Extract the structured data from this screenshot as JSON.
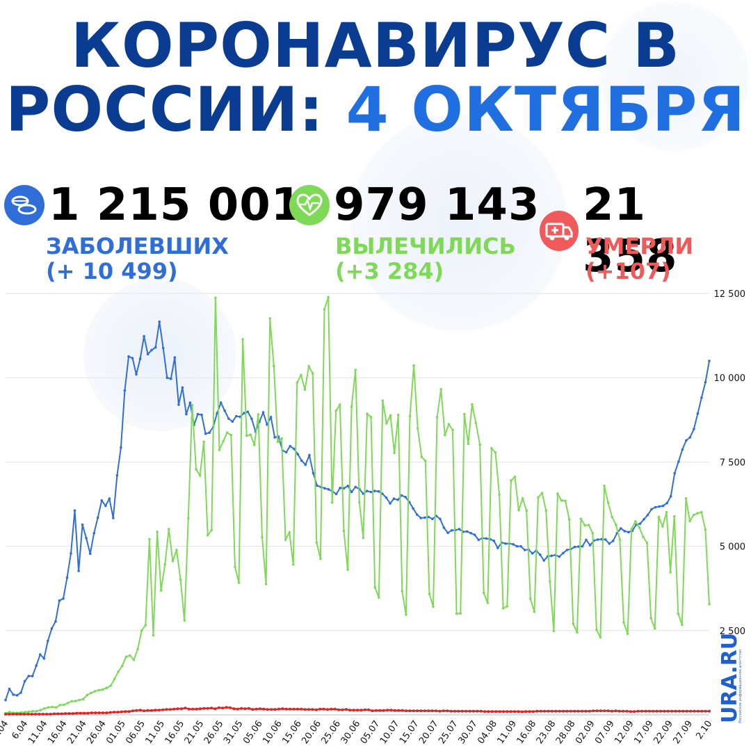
{
  "header": {
    "title_line1": "КОРОНАВИРУС В",
    "title_line2_a": "РОССИИ:",
    "title_line2_b": "4 ОКТЯБРЯ"
  },
  "stats": {
    "cases": {
      "value": "1 215 001",
      "label": "ЗАБОЛЕВШИХ",
      "delta": "(+ 10 499)",
      "color": "#2f6ed8",
      "icon": "pills-icon"
    },
    "recovered": {
      "value": "979 143",
      "label": "ВЫЛЕЧИЛИСЬ",
      "delta": "(+3 284)",
      "color": "#7ed957",
      "icon": "heart-pulse-icon"
    },
    "deaths": {
      "value": "21 358",
      "label": "УМЕРЛИ",
      "delta": "(+107)",
      "color": "#f05a5a",
      "icon": "ambulance-icon"
    }
  },
  "brand": {
    "name": "URA.RU",
    "tagline": "Российское информационное агентство"
  },
  "chart_data": {
    "type": "line",
    "ylim": [
      0,
      12500
    ],
    "yticks": [
      "2 500",
      "5 000",
      "7 500",
      "10 000",
      "12 500"
    ],
    "ytick_values": [
      2500,
      5000,
      7500,
      10000,
      12500
    ],
    "xtick_labels": [
      "1.04",
      "6.04",
      "11.04",
      "16.04",
      "21.04",
      "26.04",
      "01.05",
      "06.05",
      "11.05",
      "16.05",
      "21.05",
      "26.05",
      "31.05",
      "05.06",
      "10.06",
      "15.06",
      "20.06",
      "25.06",
      "30.06",
      "05.07",
      "10.07",
      "15.07",
      "20.07",
      "25.07",
      "30.07",
      "04.08",
      "11.09",
      "16.08",
      "23.08",
      "28.08",
      "02.09",
      "07.09",
      "12.09",
      "17.09",
      "22.09",
      "27.09",
      "2.10"
    ],
    "x_start": "2020-04-01",
    "x_end": "2020-10-04",
    "grid": true,
    "legend": "none",
    "series": [
      {
        "color": "#2f6ed8",
        "values": [
          440,
          770,
          600,
          580,
          660,
          1000,
          1150,
          1150,
          1460,
          1790,
          1670,
          2190,
          2560,
          2770,
          3390,
          3450,
          4070,
          4790,
          6060,
          4270,
          5640,
          5240,
          4780,
          5390,
          5850,
          6360,
          6200,
          6410,
          5840,
          7100,
          7930,
          9620,
          10630,
          10580,
          10100,
          10560,
          11230,
          10700,
          10820,
          10900,
          11660,
          10880,
          10000,
          9970,
          10600,
          9200,
          9710,
          8920,
          9260,
          8600,
          8920,
          8900,
          8340,
          8370,
          8540,
          8950,
          9260,
          9020,
          8790,
          8700,
          8860,
          8840,
          8950,
          8990,
          8780,
          8400,
          8690,
          8970,
          8610,
          8830,
          8230,
          8250,
          7840,
          7790,
          7970,
          7890,
          7730,
          7540,
          7420,
          7700,
          7170,
          6800,
          6760,
          6720,
          6690,
          6630,
          6550,
          6730,
          6720,
          6790,
          6610,
          6760,
          6700,
          6560,
          6640,
          6610,
          6640,
          6630,
          6560,
          6440,
          6270,
          6410,
          6380,
          6510,
          6460,
          6310,
          6120,
          5940,
          5840,
          5850,
          5870,
          5810,
          5900,
          5810,
          5550,
          5400,
          5470,
          5480,
          5510,
          5430,
          5440,
          5390,
          5340,
          5190,
          5240,
          5230,
          5210,
          5160,
          4950,
          5110,
          5080,
          5080,
          5060,
          5000,
          5000,
          4890,
          4900,
          4790,
          4870,
          4750,
          4580,
          4700,
          4720,
          4740,
          4690,
          4800,
          4890,
          4920,
          4980,
          4990,
          5000,
          5190,
          5030,
          5170,
          5200,
          5210,
          5200,
          5080,
          5160,
          5390,
          5530,
          5450,
          5420,
          5460,
          5640,
          5670,
          5800,
          5930,
          6100,
          6160,
          6180,
          6200,
          6280,
          6480,
          7170,
          7510,
          7870,
          8140,
          8230,
          8480,
          8940,
          9410,
          9870,
          10499
        ]
      },
      {
        "color": "#7ed957",
        "values": [
          50,
          80,
          60,
          60,
          70,
          80,
          90,
          110,
          110,
          140,
          190,
          220,
          230,
          220,
          290,
          300,
          350,
          400,
          410,
          440,
          470,
          590,
          650,
          700,
          730,
          750,
          800,
          860,
          1060,
          1280,
          1450,
          1720,
          1760,
          1630,
          1950,
          2500,
          2660,
          5210,
          2360,
          5430,
          3690,
          4460,
          5510,
          4560,
          4890,
          4010,
          2800,
          5830,
          9190,
          7280,
          7100,
          8100,
          5330,
          5480,
          12370,
          7860,
          8120,
          8370,
          8300,
          4390,
          3920,
          11140,
          8280,
          8310,
          8010,
          8910,
          5270,
          3880,
          11760,
          10350,
          8100,
          8200,
          5200,
          5410,
          4460,
          9860,
          10080,
          9650,
          10340,
          10130,
          5110,
          4630,
          12030,
          12390,
          6300,
          9020,
          9200,
          5460,
          4310,
          9140,
          10230,
          6300,
          5250,
          8930,
          8830,
          3780,
          3480,
          9320,
          8650,
          8880,
          7770,
          8900,
          3670,
          2970,
          8860,
          10360,
          8500,
          7650,
          7530,
          3590,
          3210,
          8830,
          9660,
          8300,
          8620,
          8450,
          3000,
          3010,
          8920,
          8040,
          9210,
          8650,
          8020,
          3620,
          3320,
          7910,
          7780,
          6530,
          3160,
          3220,
          6950,
          7060,
          6070,
          6420,
          6060,
          3440,
          3060,
          6450,
          6580,
          6060,
          3960,
          2490,
          6560,
          6360,
          6350,
          5790,
          2700,
          2450,
          5810,
          5620,
          5630,
          5390,
          2520,
          2300,
          6790,
          6290,
          5870,
          5640,
          5200,
          2740,
          2400,
          5510,
          5740,
          5560,
          5280,
          5100,
          2870,
          2560,
          5870,
          5590,
          6010,
          4230,
          5890,
          3000,
          2670,
          6420,
          5750,
          5930,
          5980,
          6010,
          5490,
          3284
        ]
      },
      {
        "color": "#e02424",
        "values": [
          20,
          20,
          20,
          20,
          20,
          20,
          20,
          20,
          20,
          20,
          20,
          20,
          20,
          30,
          30,
          30,
          40,
          40,
          40,
          50,
          50,
          50,
          50,
          60,
          60,
          60,
          60,
          60,
          70,
          80,
          80,
          90,
          100,
          100,
          120,
          130,
          140,
          120,
          130,
          130,
          140,
          140,
          150,
          160,
          160,
          170,
          180,
          180,
          200,
          170,
          170,
          170,
          180,
          190,
          190,
          200,
          180,
          210,
          200,
          220,
          210,
          180,
          170,
          190,
          180,
          190,
          160,
          170,
          180,
          170,
          160,
          160,
          160,
          170,
          180,
          170,
          170,
          170,
          170,
          170,
          160,
          160,
          160,
          150,
          170,
          170,
          160,
          170,
          170,
          150,
          150,
          160,
          140,
          140,
          140,
          140,
          150,
          150,
          120,
          130,
          130,
          130,
          140,
          140,
          130,
          130,
          130,
          120,
          120,
          120,
          120,
          120,
          120,
          120,
          120,
          120,
          110,
          120,
          120,
          110,
          110,
          110,
          110,
          110,
          110,
          110,
          110,
          110,
          100,
          100,
          100,
          100,
          100,
          100,
          100,
          100,
          100,
          100,
          90,
          100,
          100,
          100,
          110,
          110,
          110,
          110,
          110,
          110,
          110,
          110,
          110,
          110,
          110,
          110,
          110,
          110,
          110,
          120,
          120,
          120,
          120,
          120,
          110,
          120,
          110,
          110,
          110,
          100,
          100,
          110,
          110,
          110,
          110,
          110,
          110,
          110,
          110,
          110,
          110,
          110,
          110,
          110,
          110,
          110,
          110,
          110,
          110,
          110,
          107
        ]
      }
    ]
  }
}
